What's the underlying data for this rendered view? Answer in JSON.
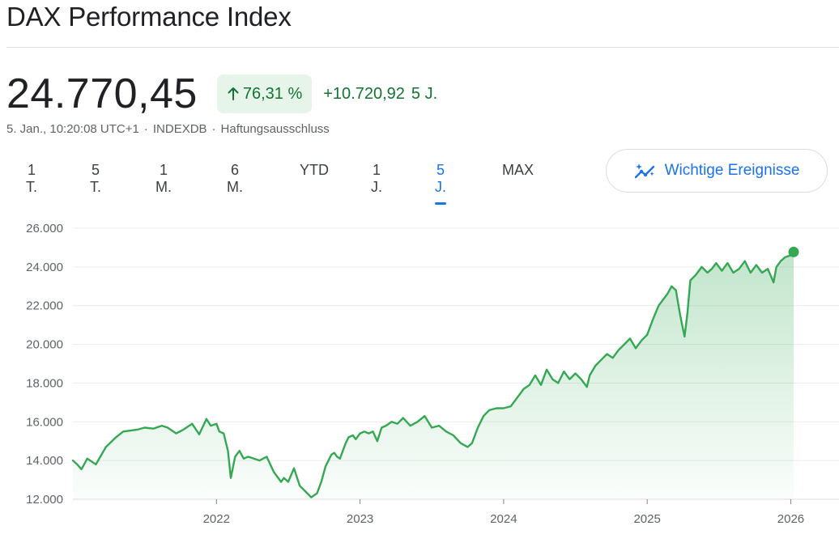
{
  "header": {
    "title": "DAX Performance Index"
  },
  "quote": {
    "price": "24.770,45",
    "change_percent": "76,31 %",
    "change_abs": "+10.720,92",
    "change_period": "5 J."
  },
  "meta": {
    "timestamp": "5. Jan., 10:20:08 UTC+1",
    "sep1": "·",
    "source": "INDEXDB",
    "sep2": "·",
    "disclaimer": "Haftungsausschluss"
  },
  "ranges": [
    "1 T.",
    "5 T.",
    "1 M.",
    "6 M.",
    "YTD",
    "1 J.",
    "5 J.",
    "MAX"
  ],
  "active_range": "5 J.",
  "events_button": {
    "label": "Wichtige Ereignisse",
    "icon": "sparkle-trend-icon"
  },
  "colors": {
    "line": "#34a853",
    "positive": "#137333",
    "accent": "#1a73e8"
  },
  "chart_data": {
    "type": "area",
    "title": "",
    "xlabel": "",
    "ylabel": "",
    "ylim": [
      12000,
      26000
    ],
    "xlim": [
      2021.0,
      2026.02
    ],
    "y_ticks": [
      12000,
      14000,
      16000,
      18000,
      20000,
      22000,
      24000,
      26000
    ],
    "y_tick_labels": [
      "12.000",
      "14.000",
      "16.000",
      "18.000",
      "20.000",
      "22.000",
      "24.000",
      "26.000"
    ],
    "x_ticks": [
      2022,
      2023,
      2024,
      2025,
      2026
    ],
    "x_tick_labels": [
      "2022",
      "2023",
      "2024",
      "2025",
      "2026"
    ],
    "grid": true,
    "series": [
      {
        "x": [
          2021.0,
          2021.03,
          2021.06,
          2021.1,
          2021.16,
          2021.23,
          2021.3,
          2021.35,
          2021.45,
          2021.5,
          2021.56,
          2021.62,
          2021.66,
          2021.72,
          2021.77,
          2021.83,
          2021.88,
          2021.93,
          2021.96,
          2022.0,
          2022.02,
          2022.05,
          2022.08,
          2022.1,
          2022.13,
          2022.16,
          2022.19,
          2022.22,
          2022.26,
          2022.3,
          2022.35,
          2022.4,
          2022.45,
          2022.47,
          2022.5,
          2022.54,
          2022.58,
          2022.62,
          2022.66,
          2022.7,
          2022.73,
          2022.76,
          2022.78,
          2022.8,
          2022.82,
          2022.84,
          2022.86,
          2022.88,
          2022.9,
          2022.92,
          2022.95,
          2022.97,
          2023.0,
          2023.03,
          2023.06,
          2023.09,
          2023.12,
          2023.15,
          2023.18,
          2023.22,
          2023.26,
          2023.3,
          2023.35,
          2023.4,
          2023.45,
          2023.5,
          2023.55,
          2023.6,
          2023.65,
          2023.7,
          2023.75,
          2023.78,
          2023.82,
          2023.86,
          2023.9,
          2023.95,
          2024.0,
          2024.05,
          2024.1,
          2024.14,
          2024.18,
          2024.22,
          2024.26,
          2024.3,
          2024.34,
          2024.38,
          2024.42,
          2024.46,
          2024.5,
          2024.54,
          2024.58,
          2024.6,
          2024.64,
          2024.68,
          2024.72,
          2024.76,
          2024.8,
          2024.84,
          2024.88,
          2024.92,
          2024.96,
          2025.0,
          2025.04,
          2025.08,
          2025.12,
          2025.14,
          2025.17,
          2025.2,
          2025.23,
          2025.26,
          2025.28,
          2025.3,
          2025.34,
          2025.38,
          2025.42,
          2025.45,
          2025.48,
          2025.52,
          2025.56,
          2025.6,
          2025.64,
          2025.68,
          2025.72,
          2025.76,
          2025.8,
          2025.84,
          2025.88,
          2025.9,
          2025.93,
          2025.96,
          2026.0,
          2026.02
        ],
        "y": [
          14000,
          13800,
          13550,
          14100,
          13800,
          14700,
          15200,
          15500,
          15600,
          15700,
          15650,
          15800,
          15700,
          15400,
          15600,
          15900,
          15350,
          16150,
          15800,
          15900,
          15500,
          15400,
          14500,
          13100,
          14200,
          14500,
          14100,
          14200,
          14100,
          14000,
          14200,
          13400,
          12900,
          13100,
          12900,
          13600,
          12700,
          12400,
          12100,
          12300,
          12900,
          13700,
          14000,
          14300,
          14400,
          14200,
          14100,
          14500,
          14900,
          15200,
          15300,
          15100,
          15400,
          15500,
          15400,
          15500,
          15000,
          15700,
          15800,
          16000,
          15900,
          16200,
          15800,
          16000,
          16300,
          15700,
          15800,
          15500,
          15300,
          14900,
          14700,
          14900,
          15700,
          16300,
          16600,
          16700,
          16700,
          16800,
          17300,
          17700,
          17900,
          18400,
          17900,
          18700,
          18200,
          18000,
          18600,
          18200,
          18500,
          18200,
          17800,
          18400,
          18900,
          19200,
          19500,
          19300,
          19700,
          20000,
          20300,
          19800,
          20200,
          20500,
          21300,
          22000,
          22400,
          22600,
          23000,
          22800,
          21500,
          20400,
          21600,
          23300,
          23600,
          24000,
          23700,
          23900,
          24200,
          23800,
          24200,
          23700,
          23900,
          24300,
          23700,
          24100,
          23700,
          23900,
          23200,
          24000,
          24300,
          24500,
          24600,
          24770
        ]
      }
    ]
  }
}
